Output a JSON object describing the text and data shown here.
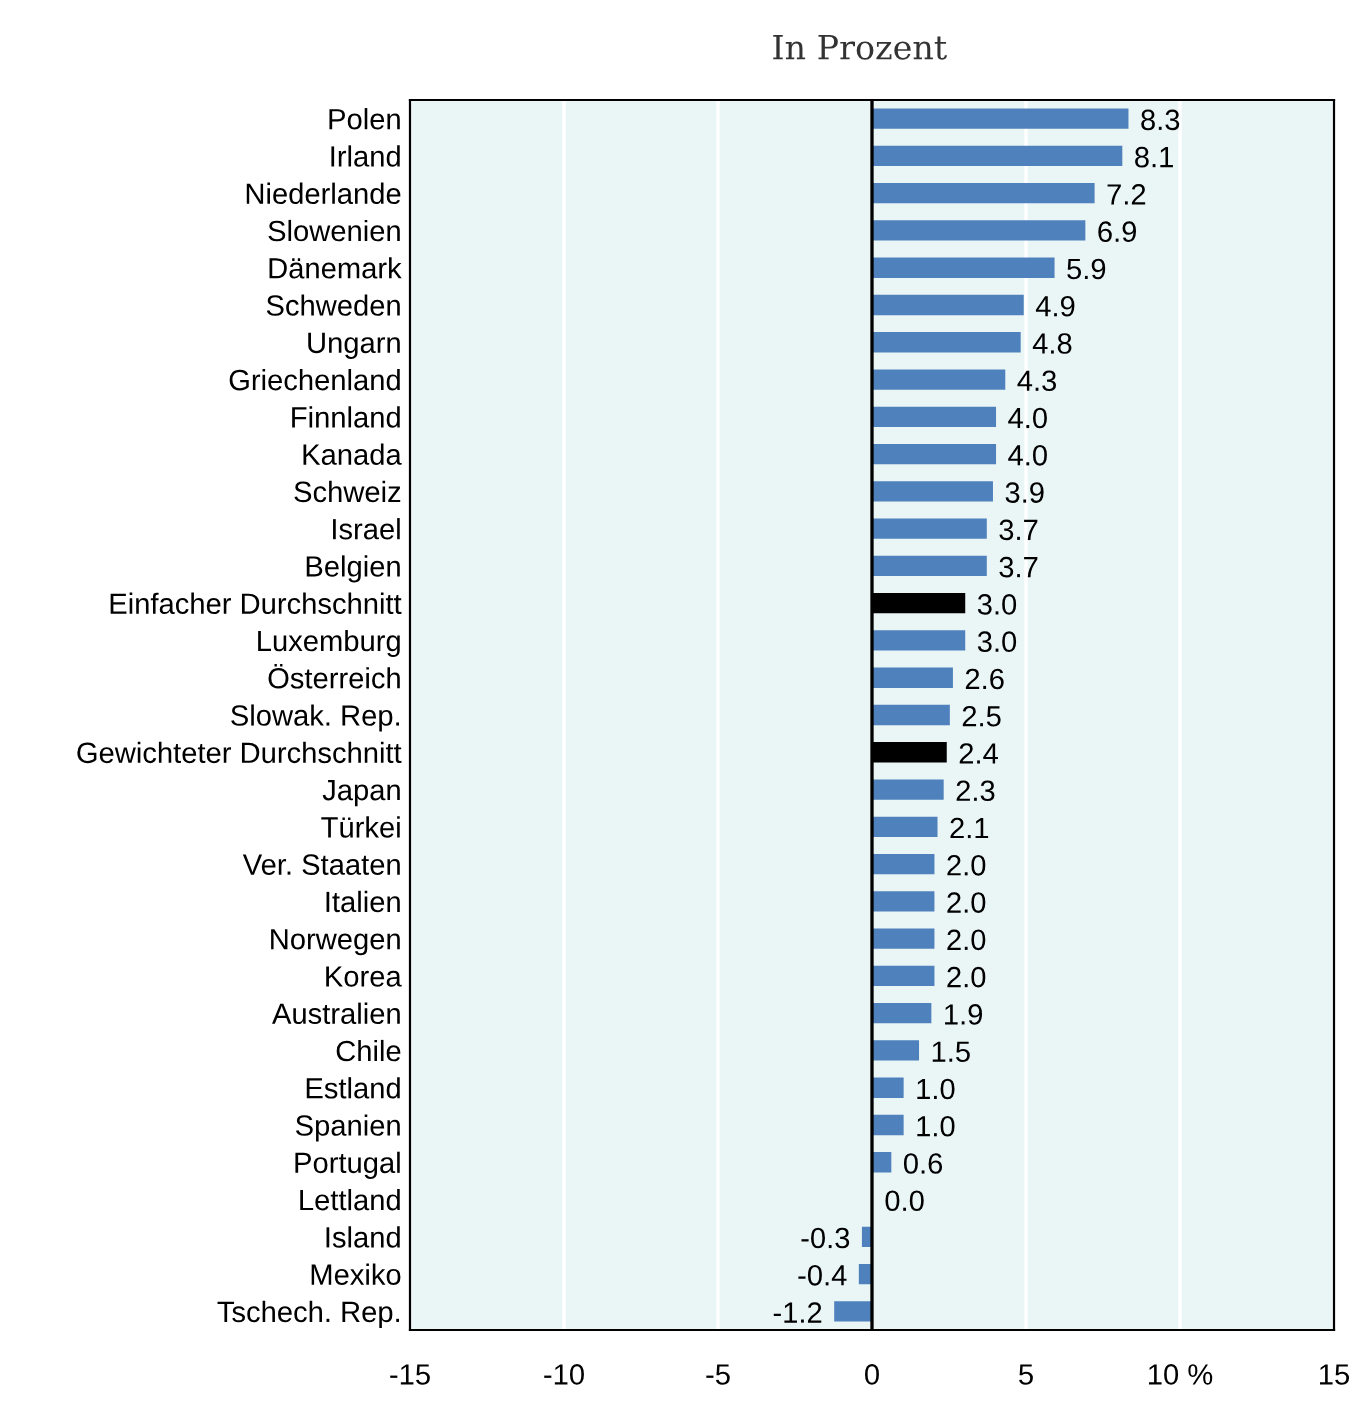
{
  "chart_data": {
    "type": "bar",
    "orientation": "horizontal",
    "title": "In Prozent",
    "categories": [
      "Polen",
      "Irland",
      "Niederlande",
      "Slowenien",
      "Dänemark",
      "Schweden",
      "Ungarn",
      "Griechenland",
      "Finnland",
      "Kanada",
      "Schweiz",
      "Israel",
      "Belgien",
      "Einfacher Durchschnitt",
      "Luxemburg",
      "Österreich",
      "Slowak. Rep.",
      "Gewichteter Durchschnitt",
      "Japan",
      "Türkei",
      "Ver. Staaten",
      "Italien",
      "Norwegen",
      "Korea",
      "Australien",
      "Chile",
      "Estland",
      "Spanien",
      "Portugal",
      "Lettland",
      "Island",
      "Mexiko",
      "Tschech. Rep."
    ],
    "values": [
      8.3,
      8.1,
      7.2,
      6.9,
      5.9,
      4.9,
      4.8,
      4.3,
      4.0,
      4.0,
      3.9,
      3.7,
      3.7,
      3.0,
      3.0,
      2.6,
      2.5,
      2.4,
      2.3,
      2.1,
      2.0,
      2.0,
      2.0,
      2.0,
      1.9,
      1.5,
      1.0,
      1.0,
      0.6,
      0.0,
      -0.3,
      -0.4,
      -1.2
    ],
    "colors": [
      "#4f81bd",
      "#4f81bd",
      "#4f81bd",
      "#4f81bd",
      "#4f81bd",
      "#4f81bd",
      "#4f81bd",
      "#4f81bd",
      "#4f81bd",
      "#4f81bd",
      "#4f81bd",
      "#4f81bd",
      "#4f81bd",
      "#000000",
      "#4f81bd",
      "#4f81bd",
      "#4f81bd",
      "#000000",
      "#4f81bd",
      "#4f81bd",
      "#4f81bd",
      "#4f81bd",
      "#4f81bd",
      "#4f81bd",
      "#4f81bd",
      "#4f81bd",
      "#4f81bd",
      "#4f81bd",
      "#4f81bd",
      "#4f81bd",
      "#4f81bd",
      "#4f81bd",
      "#4f81bd"
    ],
    "value_labels": [
      "8.3",
      "8.1",
      "7.2",
      "6.9",
      "5.9",
      "4.9",
      "4.8",
      "4.3",
      "4.0",
      "4.0",
      "3.9",
      "3.7",
      "3.7",
      "3.0",
      "3.0",
      "2.6",
      "2.5",
      "2.4",
      "2.3",
      "2.1",
      "2.0",
      "2.0",
      "2.0",
      "2.0",
      "1.9",
      "1.5",
      "1.0",
      "1.0",
      "0.6",
      "0.0",
      "-0.3",
      "-0.4",
      "-1.2"
    ],
    "xlim": [
      -15,
      15
    ],
    "xticks": [
      -15,
      -10,
      -5,
      0,
      5,
      {
        "value": 10,
        "label": "10 %"
      },
      15
    ],
    "ref_lines": [
      {
        "axis": "x",
        "value": 0,
        "color": "#000000"
      }
    ],
    "grid": "x",
    "legend": false
  }
}
